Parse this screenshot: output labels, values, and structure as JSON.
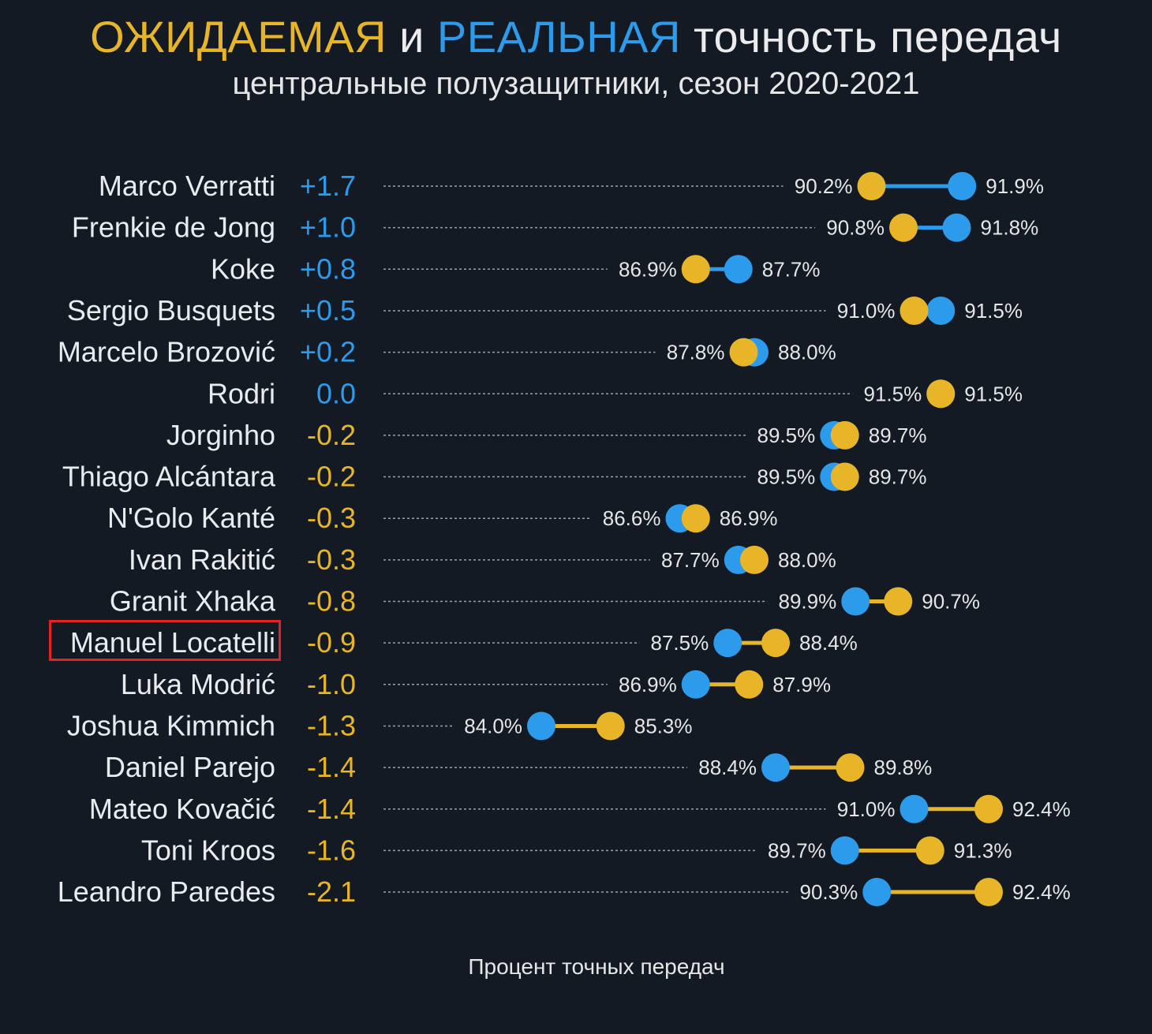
{
  "title": {
    "expected_word": "ОЖИДАЕМАЯ",
    "and_word": "и",
    "real_word": "РЕАЛЬНАЯ",
    "rest": "точность передач"
  },
  "subtitle": "центральные полузащитники, сезон 2020-2021",
  "xlabel": "Процент точных передач",
  "colors": {
    "expected": "#e8b528",
    "real": "#2c9bec",
    "background": "#131a24",
    "highlight": "#e02424"
  },
  "highlighted_player": "Manuel Locatelli",
  "chart_data": {
    "type": "dumbbell",
    "series": [
      {
        "name": "ОЖИДАЕМАЯ",
        "color": "#e8b528"
      },
      {
        "name": "РЕАЛЬНАЯ",
        "color": "#2c9bec"
      }
    ],
    "rows": [
      {
        "player": "Marco Verratti",
        "diff": "+1.7",
        "expected": 90.2,
        "real": 91.9,
        "expected_label": "90.2%",
        "real_label": "91.9%"
      },
      {
        "player": "Frenkie de Jong",
        "diff": "+1.0",
        "expected": 90.8,
        "real": 91.8,
        "expected_label": "90.8%",
        "real_label": "91.8%"
      },
      {
        "player": "Koke",
        "diff": "+0.8",
        "expected": 86.9,
        "real": 87.7,
        "expected_label": "86.9%",
        "real_label": "87.7%"
      },
      {
        "player": "Sergio Busquets",
        "diff": "+0.5",
        "expected": 91.0,
        "real": 91.5,
        "expected_label": "91.0%",
        "real_label": "91.5%"
      },
      {
        "player": "Marcelo Brozović",
        "diff": "+0.2",
        "expected": 87.8,
        "real": 88.0,
        "expected_label": "87.8%",
        "real_label": "88.0%"
      },
      {
        "player": "Rodri",
        "diff": "0.0",
        "expected": 91.5,
        "real": 91.5,
        "expected_label": "91.5%",
        "real_label": "91.5%"
      },
      {
        "player": "Jorginho",
        "diff": "-0.2",
        "expected": 89.7,
        "real": 89.5,
        "expected_label": "89.7%",
        "real_label": "89.5%"
      },
      {
        "player": "Thiago Alcántara",
        "diff": "-0.2",
        "expected": 89.7,
        "real": 89.5,
        "expected_label": "89.7%",
        "real_label": "89.5%"
      },
      {
        "player": "N'Golo Kanté",
        "diff": "-0.3",
        "expected": 86.9,
        "real": 86.6,
        "expected_label": "86.9%",
        "real_label": "86.6%"
      },
      {
        "player": "Ivan Rakitić",
        "diff": "-0.3",
        "expected": 88.0,
        "real": 87.7,
        "expected_label": "88.0%",
        "real_label": "87.7%"
      },
      {
        "player": "Granit Xhaka",
        "diff": "-0.8",
        "expected": 90.7,
        "real": 89.9,
        "expected_label": "90.7%",
        "real_label": "89.9%"
      },
      {
        "player": "Manuel Locatelli",
        "diff": "-0.9",
        "expected": 88.4,
        "real": 87.5,
        "expected_label": "88.4%",
        "real_label": "87.5%"
      },
      {
        "player": "Luka Modrić",
        "diff": "-1.0",
        "expected": 87.9,
        "real": 86.9,
        "expected_label": "87.9%",
        "real_label": "86.9%"
      },
      {
        "player": "Joshua Kimmich",
        "diff": "-1.3",
        "expected": 85.3,
        "real": 84.0,
        "expected_label": "85.3%",
        "real_label": "84.0%"
      },
      {
        "player": "Daniel Parejo",
        "diff": "-1.4",
        "expected": 89.8,
        "real": 88.4,
        "expected_label": "89.8%",
        "real_label": "88.4%"
      },
      {
        "player": "Mateo Kovačić",
        "diff": "-1.4",
        "expected": 92.4,
        "real": 91.0,
        "expected_label": "92.4%",
        "real_label": "91.0%"
      },
      {
        "player": "Toni Kroos",
        "diff": "-1.6",
        "expected": 91.3,
        "real": 89.7,
        "expected_label": "91.3%",
        "real_label": "89.7%"
      },
      {
        "player": "Leandro Paredes",
        "diff": "-2.1",
        "expected": 92.4,
        "real": 90.3,
        "expected_label": "92.4%",
        "real_label": "90.3%"
      }
    ]
  }
}
